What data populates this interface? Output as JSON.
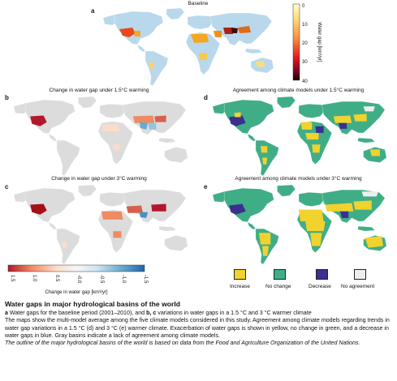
{
  "panels": {
    "a": {
      "label": "a",
      "title": "Baseline"
    },
    "b": {
      "label": "b",
      "title": "Change in water gap under 1.5°C warming"
    },
    "c": {
      "label": "c",
      "title": "Change in water gap under 3°C warming"
    },
    "d": {
      "label": "d",
      "title": "Agreement among climate models under 1.5°C warming"
    },
    "e": {
      "label": "e",
      "title": "Agreement among climate models under 3°C warming"
    }
  },
  "baseline_colorbar": {
    "label": "Water gap [km³/yr]",
    "ticks": [
      "0",
      "10",
      "20",
      "30",
      "40"
    ],
    "colors": [
      "#ffffcc",
      "#fed976",
      "#fd8d3c",
      "#e31a1c",
      "#800026",
      "#1a0000"
    ]
  },
  "change_colorbar": {
    "label": "Change in water gap [km³/yr]",
    "ticks": [
      "1.5",
      "1.0",
      "0.5",
      "-0.0",
      "-0.5",
      "-1.0",
      "-1.5"
    ],
    "colors": [
      "#b2182b",
      "#ef8a62",
      "#fddbc7",
      "#f7f7f7",
      "#d1e5f0",
      "#67a9cf",
      "#2166ac"
    ]
  },
  "agreement_legend": [
    {
      "label": "Increase",
      "color": "#f2d22e"
    },
    {
      "label": "No change",
      "color": "#3fae86"
    },
    {
      "label": "Decrease",
      "color": "#3b2f8f"
    },
    {
      "label": "No agreement",
      "color": "#eeeeee"
    }
  ],
  "map_colors": {
    "baseline_base": "#b9d8ec",
    "change_base": "#dcdcdc",
    "agree_base": "#3fae86"
  },
  "caption": {
    "title": "Water gaps in major hydrological basins of the world",
    "line1_a": "a",
    "line1_text1": " Water gaps for the baseline period (2001–2010), and ",
    "line1_bc": "b, c",
    "line1_text2": " variations in water gaps in a 1.5 °C and 3 °C warmer climate",
    "body": "The maps show the multi-model average among the five climate models considered in this study. Agreement among climate models regarding trends in water gap variations in a 1.5 °C (d) and 3 °C (e) warmer climate. Exacerbation of water gaps is shown in yellow, no change in green, and a decrease in water gaps in blue. Gray basins indicate a lack of agreement among climate models.",
    "source": "The outline of the major hydrological basins of the world is based on data from the Food and Agriculture Organization of the United Nations."
  }
}
